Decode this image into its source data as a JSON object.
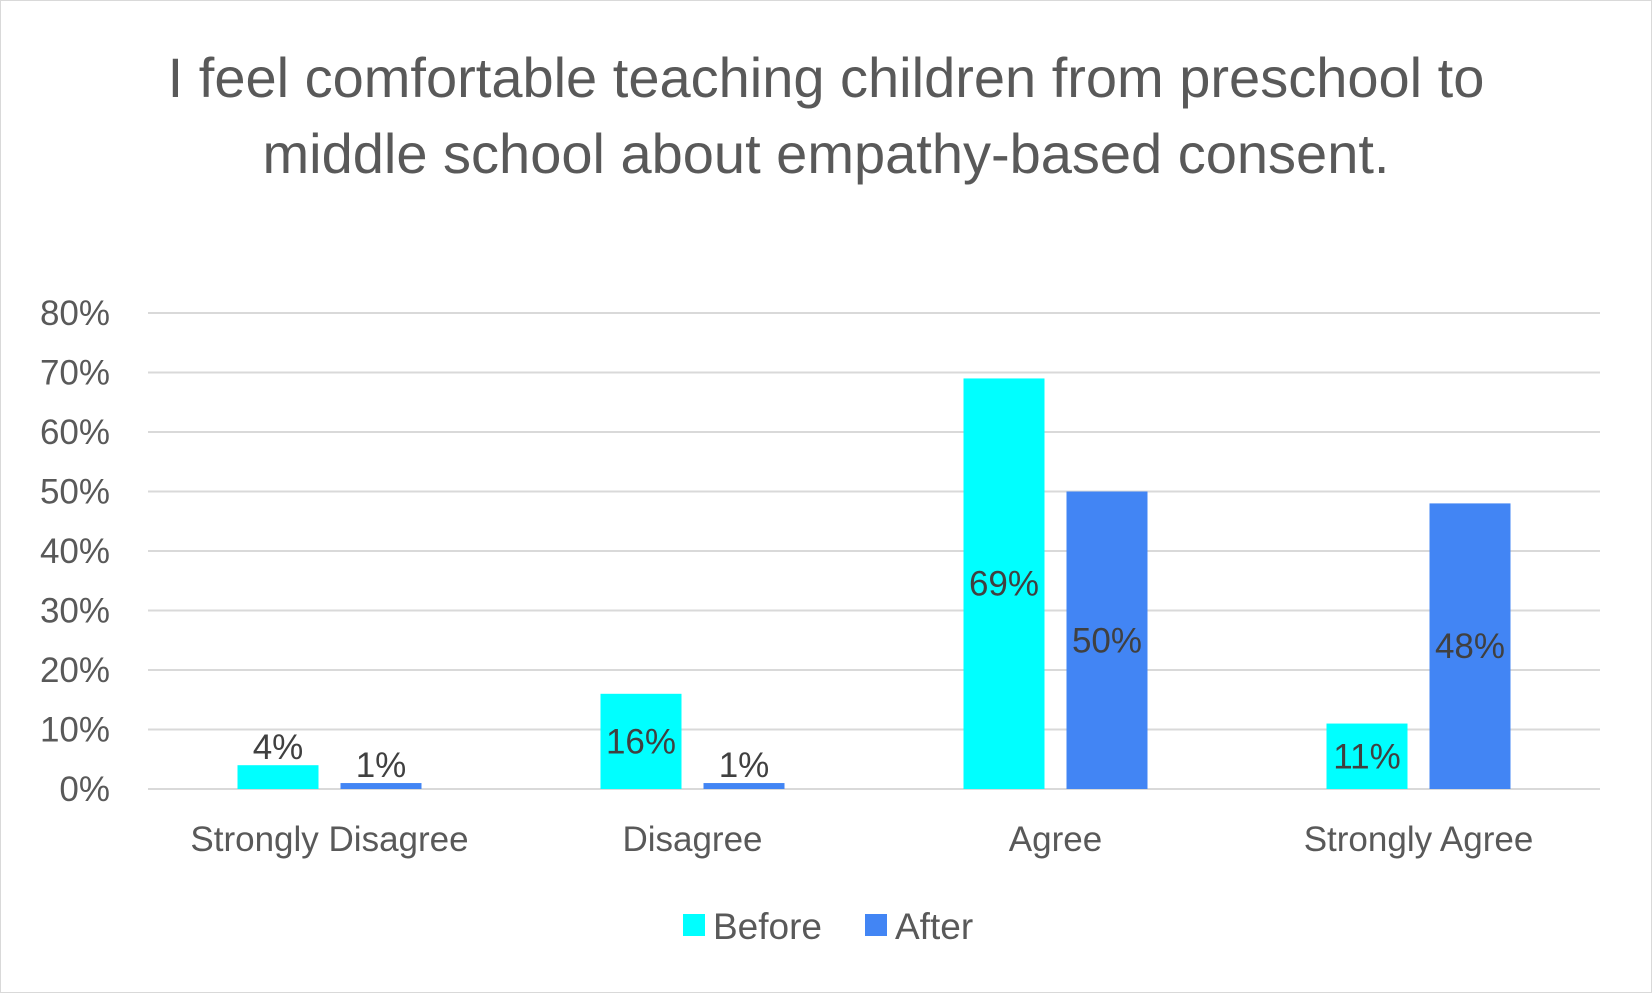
{
  "chart_data": {
    "type": "bar",
    "title": "I feel comfortable teaching children from preschool to middle school about empathy-based consent.",
    "categories": [
      "Strongly Disagree",
      "Disagree",
      "Agree",
      "Strongly Agree"
    ],
    "series": [
      {
        "name": "Before",
        "color": "#00FFFF",
        "values": [
          4,
          16,
          69,
          11
        ],
        "labels": [
          "4%",
          "16%",
          "69%",
          "11%"
        ]
      },
      {
        "name": "After",
        "color": "#4285F4",
        "values": [
          1,
          1,
          50,
          48
        ],
        "labels": [
          "1%",
          "1%",
          "50%",
          "48%"
        ]
      }
    ],
    "ylim": [
      0,
      80
    ],
    "yticks": [
      "0%",
      "10%",
      "20%",
      "30%",
      "40%",
      "50%",
      "60%",
      "70%",
      "80%"
    ],
    "grid": true,
    "legend": "bottom",
    "gridColor": "#d9d9d9",
    "axisColor": "#d9d9d9"
  }
}
